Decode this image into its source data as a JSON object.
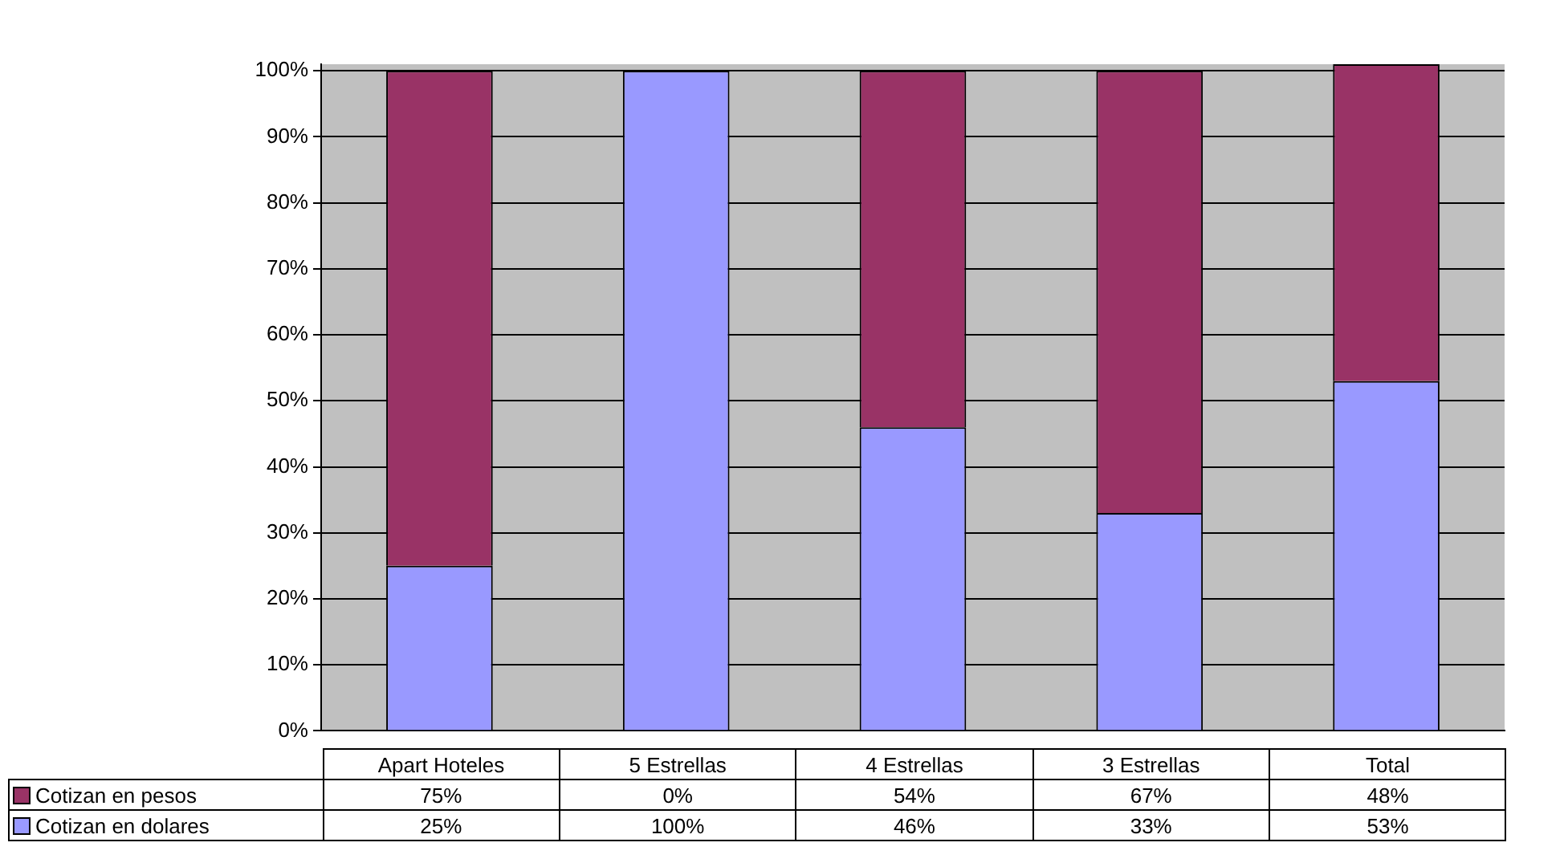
{
  "chart_data": {
    "type": "bar",
    "stacked": true,
    "categories": [
      "Apart Hoteles",
      "5 Estrellas",
      "4 Estrellas",
      "3 Estrellas",
      "Total"
    ],
    "series": [
      {
        "name": "Cotizan en dolares",
        "color": "#9999ff",
        "values": [
          25,
          100,
          46,
          33,
          53
        ],
        "value_labels": [
          "25%",
          "100%",
          "46%",
          "33%",
          "53%"
        ]
      },
      {
        "name": "Cotizan en pesos",
        "color": "#993366",
        "values": [
          75,
          0,
          54,
          67,
          48
        ],
        "value_labels": [
          "75%",
          "0%",
          "54%",
          "67%",
          "48%"
        ]
      }
    ],
    "ylim": [
      0,
      101
    ],
    "yticks": [
      {
        "value": 0,
        "label": "0%"
      },
      {
        "value": 10,
        "label": "10%"
      },
      {
        "value": 20,
        "label": "20%"
      },
      {
        "value": 30,
        "label": "30%"
      },
      {
        "value": 40,
        "label": "40%"
      },
      {
        "value": 50,
        "label": "50%"
      },
      {
        "value": 60,
        "label": "60%"
      },
      {
        "value": 70,
        "label": "70%"
      },
      {
        "value": 80,
        "label": "80%"
      },
      {
        "value": 90,
        "label": "90%"
      },
      {
        "value": 100,
        "label": "100%"
      }
    ],
    "grid": "y",
    "legend": "bottom left"
  }
}
